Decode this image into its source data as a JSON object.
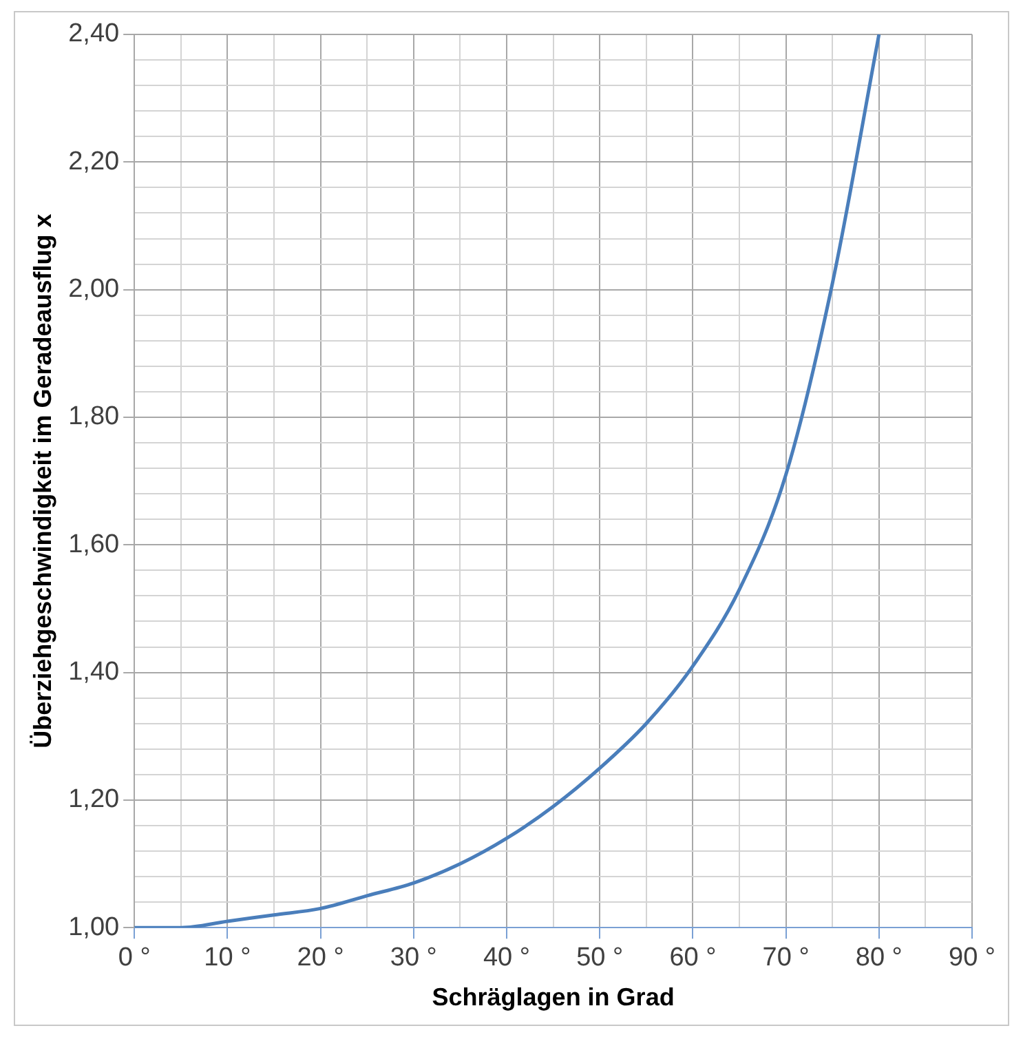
{
  "chart_data": {
    "type": "line",
    "xlabel": "Schräglagen in Grad",
    "ylabel": "Überziehgeschwindigkeit im Geradeausflug x",
    "grid": true,
    "legend": false,
    "marker": "none",
    "line_style": "solid",
    "x": [
      0,
      5,
      10,
      15,
      20,
      25,
      30,
      35,
      40,
      45,
      50,
      55,
      60,
      65,
      70,
      75,
      80
    ],
    "series": [
      {
        "color": "#4a7ebb",
        "values": [
          1.0,
          1.0,
          1.01,
          1.02,
          1.03,
          1.05,
          1.07,
          1.1,
          1.14,
          1.19,
          1.25,
          1.32,
          1.41,
          1.53,
          1.71,
          2.01,
          2.4
        ]
      }
    ],
    "xlim": [
      0,
      90
    ],
    "xticks": [
      {
        "value": 0,
        "label": "0 °"
      },
      {
        "value": 5,
        "label": null
      },
      {
        "value": 10,
        "label": "10 °"
      },
      {
        "value": 15,
        "label": null
      },
      {
        "value": 20,
        "label": "20 °"
      },
      {
        "value": 25,
        "label": null
      },
      {
        "value": 30,
        "label": "30 °"
      },
      {
        "value": 35,
        "label": null
      },
      {
        "value": 40,
        "label": "40 °"
      },
      {
        "value": 45,
        "label": null
      },
      {
        "value": 50,
        "label": "50 °"
      },
      {
        "value": 55,
        "label": null
      },
      {
        "value": 60,
        "label": "60 °"
      },
      {
        "value": 65,
        "label": null
      },
      {
        "value": 70,
        "label": "70 °"
      },
      {
        "value": 75,
        "label": null
      },
      {
        "value": 80,
        "label": "80 °"
      },
      {
        "value": 85,
        "label": null
      },
      {
        "value": 90,
        "label": "90 °"
      }
    ],
    "ylim": [
      1.0,
      2.4
    ],
    "yticks": [
      {
        "value": 1.0,
        "label": "1,00"
      },
      {
        "value": 1.04,
        "label": null
      },
      {
        "value": 1.08,
        "label": null
      },
      {
        "value": 1.12,
        "label": null
      },
      {
        "value": 1.16,
        "label": null
      },
      {
        "value": 1.2,
        "label": "1,20"
      },
      {
        "value": 1.24,
        "label": null
      },
      {
        "value": 1.28,
        "label": null
      },
      {
        "value": 1.32,
        "label": null
      },
      {
        "value": 1.36,
        "label": null
      },
      {
        "value": 1.4,
        "label": "1,40"
      },
      {
        "value": 1.44,
        "label": null
      },
      {
        "value": 1.48,
        "label": null
      },
      {
        "value": 1.52,
        "label": null
      },
      {
        "value": 1.56,
        "label": null
      },
      {
        "value": 1.6,
        "label": "1,60"
      },
      {
        "value": 1.64,
        "label": null
      },
      {
        "value": 1.68,
        "label": null
      },
      {
        "value": 1.72,
        "label": null
      },
      {
        "value": 1.76,
        "label": null
      },
      {
        "value": 1.8,
        "label": "1,80"
      },
      {
        "value": 1.84,
        "label": null
      },
      {
        "value": 1.88,
        "label": null
      },
      {
        "value": 1.92,
        "label": null
      },
      {
        "value": 1.96,
        "label": null
      },
      {
        "value": 2.0,
        "label": "2,00"
      },
      {
        "value": 2.04,
        "label": null
      },
      {
        "value": 2.08,
        "label": null
      },
      {
        "value": 2.12,
        "label": null
      },
      {
        "value": 2.16,
        "label": null
      },
      {
        "value": 2.2,
        "label": "2,20"
      },
      {
        "value": 2.24,
        "label": null
      },
      {
        "value": 2.28,
        "label": null
      },
      {
        "value": 2.32,
        "label": null
      },
      {
        "value": 2.36,
        "label": null
      },
      {
        "value": 2.4,
        "label": "2,40"
      }
    ]
  }
}
